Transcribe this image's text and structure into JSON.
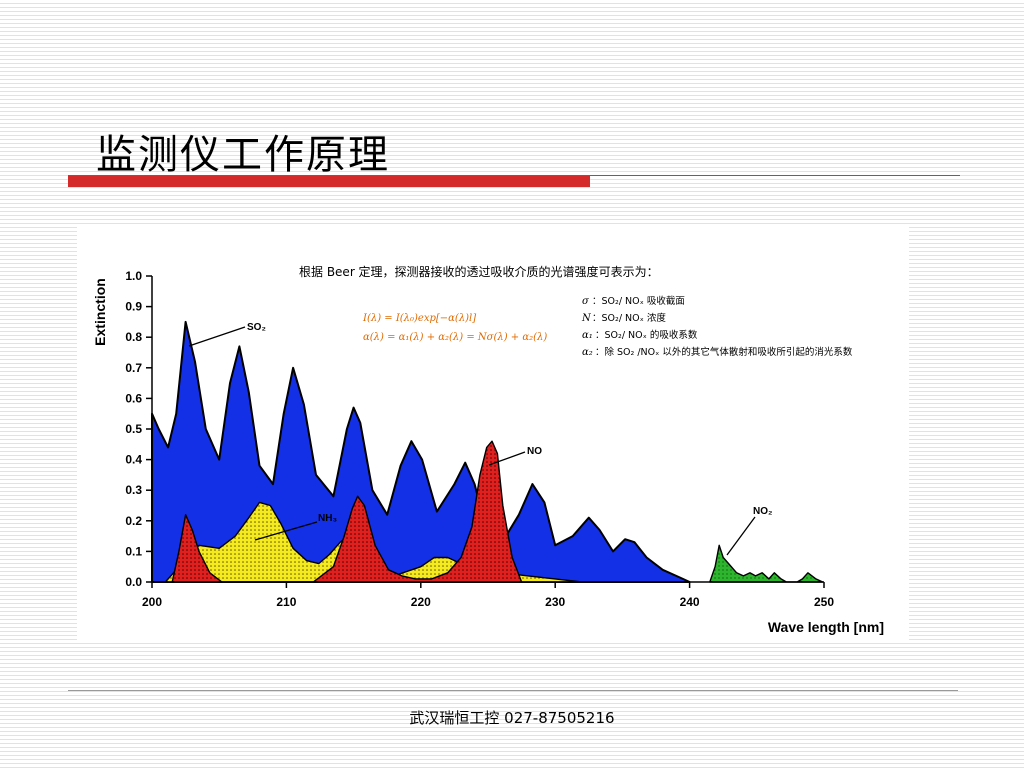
{
  "slide": {
    "title": "监测仪工作原理",
    "footer": "武汉瑞恒工控 027-87505216"
  },
  "colors": {
    "title_bar": "#d42a2a",
    "so2_fill": "#1430e6",
    "no_fill": "#e0201e",
    "nh3_fill": "#f5ea1e",
    "no2_fill": "#2db52d",
    "formula_text": "#e06a00"
  },
  "annotation": {
    "heading": "根据 Beer 定理，探测器接收的透过吸收介质的光谱强度可表示为：",
    "formula_1": "I(λ) = I(λ₀)exp[−α(λ)l]",
    "formula_2": "α(λ) = α₁(λ) + α₂(λ) = Nσ(λ) + α₂(λ)",
    "legend": [
      {
        "symbol": "σ",
        "text": "：SO₂/ NOₓ 吸收截面"
      },
      {
        "symbol": "N",
        "text": "：SO₂/ NOₓ 浓度"
      },
      {
        "symbol": "α₁",
        "text": "：SO₂/ NOₓ 的吸收系数"
      },
      {
        "symbol": "α₂",
        "text": "：除 SO₂ /NOₓ 以外的其它气体散射和吸收所引起的消光系数"
      }
    ]
  },
  "chart_data": {
    "type": "area",
    "title": "",
    "xlabel": "Wave length [nm]",
    "ylabel": "Extinction",
    "xlim": [
      200,
      250
    ],
    "ylim": [
      0,
      1.0
    ],
    "xticks": [
      200,
      210,
      220,
      230,
      240,
      250
    ],
    "yticks": [
      "0.0",
      "0.1",
      "0.2",
      "0.3",
      "0.4",
      "0.5",
      "0.6",
      "0.7",
      "0.8",
      "0.9",
      "1.0"
    ],
    "grid": false,
    "series": [
      {
        "name": "SO₂",
        "color": "#1430e6",
        "x": [
          200,
          200.5,
          201.2,
          201.8,
          202.5,
          203.2,
          204.0,
          205.0,
          205.8,
          206.5,
          207.2,
          208.0,
          209.0,
          209.8,
          210.5,
          211.3,
          212.2,
          213.5,
          214.5,
          215.0,
          215.5,
          216.4,
          217.5,
          218.5,
          219.3,
          220.1,
          221.2,
          222.5,
          223.3,
          224.0,
          225.0,
          226.2,
          227.3,
          228.3,
          229.2,
          230.0,
          231.3,
          232.5,
          233.3,
          234.3,
          235.2,
          235.9,
          236.8,
          238.0,
          239.5,
          240.0
        ],
        "y": [
          0.55,
          0.5,
          0.44,
          0.55,
          0.85,
          0.72,
          0.5,
          0.4,
          0.65,
          0.77,
          0.62,
          0.38,
          0.32,
          0.55,
          0.7,
          0.58,
          0.35,
          0.28,
          0.5,
          0.57,
          0.52,
          0.3,
          0.22,
          0.38,
          0.46,
          0.4,
          0.23,
          0.32,
          0.39,
          0.32,
          0.15,
          0.14,
          0.22,
          0.32,
          0.26,
          0.12,
          0.15,
          0.21,
          0.17,
          0.1,
          0.14,
          0.13,
          0.08,
          0.04,
          0.01,
          0.0
        ]
      },
      {
        "name": "NH₃",
        "color": "#f5ea1e",
        "x": [
          201.0,
          202.0,
          203.5,
          205.0,
          206.2,
          207.2,
          208.0,
          208.8,
          209.6,
          210.5,
          211.5,
          212.4,
          213.2,
          214.0,
          214.6,
          215.2,
          216.0,
          218.0,
          220.0,
          221.0,
          222.0,
          223.0,
          224.5,
          226.0,
          228.0,
          230.0,
          232.0
        ],
        "y": [
          0.0,
          0.05,
          0.12,
          0.11,
          0.15,
          0.21,
          0.26,
          0.25,
          0.19,
          0.11,
          0.07,
          0.06,
          0.09,
          0.13,
          0.15,
          0.1,
          0.05,
          0.02,
          0.05,
          0.08,
          0.08,
          0.06,
          0.05,
          0.03,
          0.02,
          0.01,
          0.0
        ]
      },
      {
        "name": "NO",
        "color": "#e0201e",
        "x": [
          201.5,
          202.0,
          202.5,
          203.0,
          203.5,
          204.3,
          205.2,
          206.5,
          208.5,
          210.5,
          212.0,
          213.5,
          214.3,
          214.9,
          215.3,
          215.8,
          216.6,
          217.6,
          218.6,
          219.6,
          220.8,
          222.0,
          223.0,
          223.8,
          224.4,
          224.9,
          225.3,
          225.7,
          226.1,
          226.8,
          227.5
        ],
        "y": [
          0.0,
          0.1,
          0.22,
          0.17,
          0.1,
          0.03,
          0.0,
          0.0,
          0.0,
          0.0,
          0.0,
          0.05,
          0.15,
          0.24,
          0.28,
          0.25,
          0.12,
          0.04,
          0.02,
          0.01,
          0.01,
          0.03,
          0.08,
          0.18,
          0.35,
          0.44,
          0.46,
          0.42,
          0.25,
          0.08,
          0.0
        ]
      },
      {
        "name": "NO₂",
        "color": "#2db52d",
        "x": [
          241.5,
          241.9,
          242.2,
          242.5,
          242.9,
          243.5,
          244.0,
          244.5,
          244.9,
          245.4,
          245.9,
          246.3,
          246.8,
          247.2,
          247.6,
          248.0,
          248.4,
          248.8,
          249.4,
          249.9
        ],
        "y": [
          0.0,
          0.05,
          0.12,
          0.08,
          0.06,
          0.03,
          0.02,
          0.03,
          0.02,
          0.03,
          0.01,
          0.03,
          0.01,
          0.0,
          0.0,
          0.0,
          0.01,
          0.03,
          0.01,
          0.0
        ]
      }
    ]
  }
}
